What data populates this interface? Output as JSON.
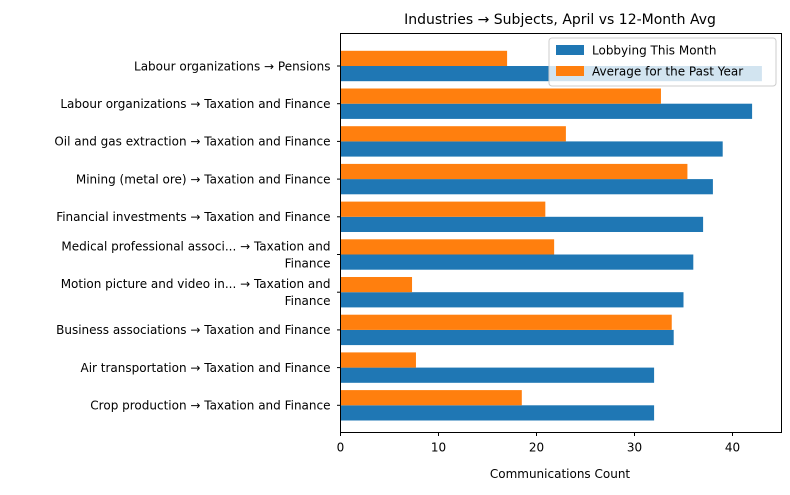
{
  "chart_data": {
    "type": "bar",
    "orientation": "horizontal",
    "title": "Industries → Subjects, April vs 12-Month Avg",
    "xlabel": "Communications Count",
    "ylabel": "",
    "xlim": [
      0,
      45
    ],
    "xticks": [
      0,
      10,
      20,
      30,
      40
    ],
    "grid": false,
    "legend_position": "top-right",
    "categories": [
      [
        "Labour organizations → Pensions"
      ],
      [
        "Labour organizations → Taxation and Finance"
      ],
      [
        "Oil and gas extraction → Taxation and Finance"
      ],
      [
        "Mining (metal ore) → Taxation and Finance"
      ],
      [
        "Financial investments → Taxation and Finance"
      ],
      [
        "Medical professional associ... → Taxation and",
        "Finance"
      ],
      [
        "Motion picture and video in... → Taxation and",
        "Finance"
      ],
      [
        "Business associations → Taxation and Finance"
      ],
      [
        "Air transportation → Taxation and Finance"
      ],
      [
        "Crop production → Taxation and Finance"
      ]
    ],
    "series": [
      {
        "name": "Lobbying This Month",
        "color": "#1f77b4",
        "values": [
          43,
          42,
          39,
          38,
          37,
          36,
          35,
          34,
          32,
          32
        ]
      },
      {
        "name": "Average for the Past Year",
        "color": "#ff7f0e",
        "values": [
          17.0,
          32.7,
          23.0,
          35.4,
          20.9,
          21.8,
          7.3,
          33.8,
          7.7,
          18.5
        ]
      }
    ]
  }
}
